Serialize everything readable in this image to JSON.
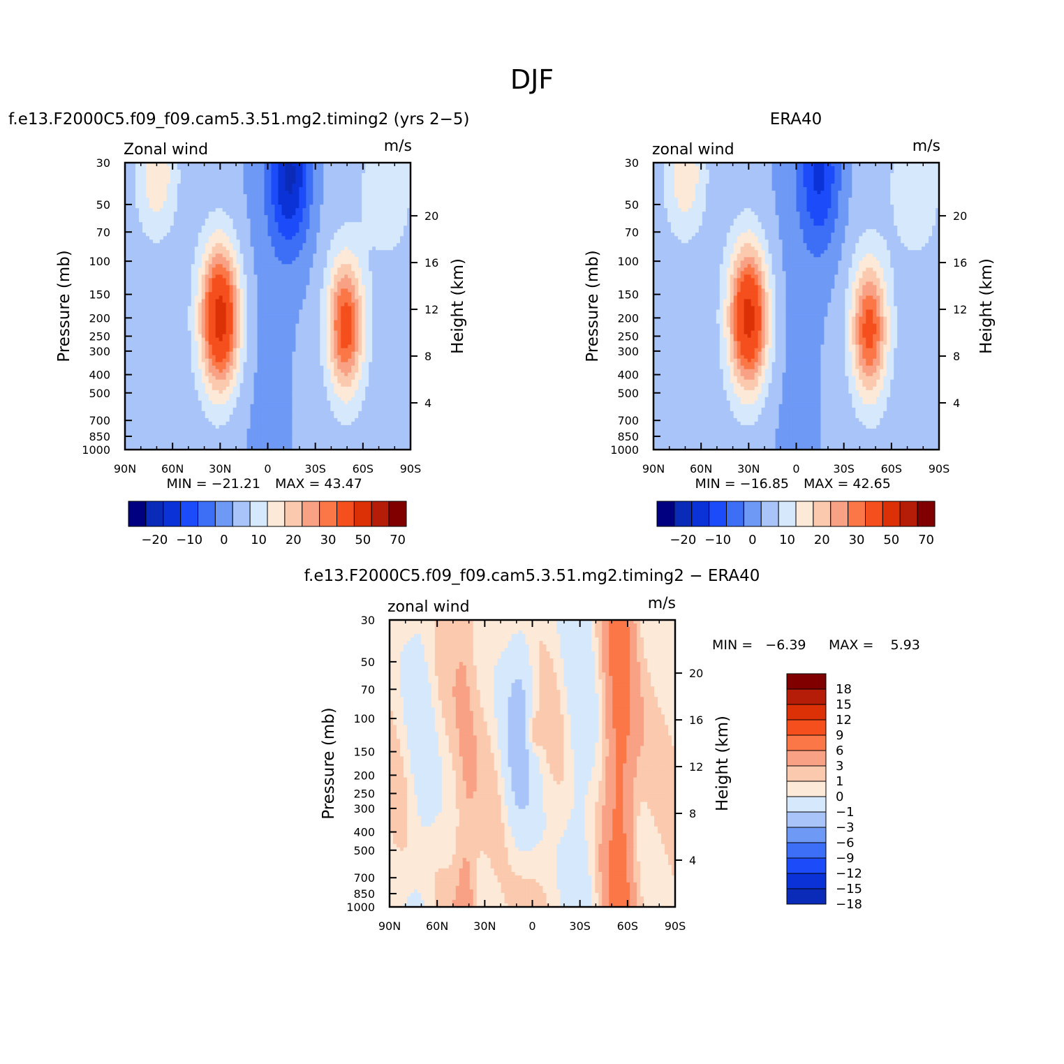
{
  "main_title": "DJF",
  "colors": {
    "main": [
      "#000080",
      "#0a2bb7",
      "#0a32d7",
      "#1c4cf9",
      "#3d6ff6",
      "#6e99f5",
      "#a9c4f9",
      "#d6e8fb",
      "#fde9d8",
      "#fbc9ae",
      "#f9a184",
      "#fb7747",
      "#f44f1c",
      "#dc3007",
      "#b61d08",
      "#800000"
    ],
    "diff": [
      "#000080",
      "#0a2bb7",
      "#0a32d7",
      "#1c4cf9",
      "#3d6ff6",
      "#6e99f5",
      "#a9c4f9",
      "#d6e8fb",
      "#fde9d8",
      "#fbc9ae",
      "#f9a184",
      "#fb7747",
      "#f44f1c",
      "#dc3007",
      "#b61d08",
      "#800000"
    ]
  },
  "chart_data": [
    {
      "type": "heatmap",
      "panel": "model",
      "title": "f.e13.F2000C5.f09_f09.cam5.3.51.mg2.timing2 (yrs 2−5)",
      "left_string": "Zonal wind",
      "right_string": "m/s",
      "ylabel": "Pressure (mb)",
      "ylabel_right": "Height (km)",
      "x_ticks": [
        "90N",
        "60N",
        "30N",
        "0",
        "30S",
        "60S",
        "90S"
      ],
      "y_ticks": [
        "30",
        "50",
        "70",
        "100",
        "150",
        "200",
        "250",
        "300",
        "400",
        "500",
        "700",
        "850",
        "1000"
      ],
      "y_ticks_right": [
        "20",
        "16",
        "12",
        "8",
        "4"
      ],
      "xlim": [
        90,
        -90
      ],
      "ylim": [
        1000,
        30
      ],
      "y_scale": "log",
      "min_text": "MIN = −21.21",
      "max_text": "MAX = 43.47",
      "min": -21.21,
      "max": 43.47,
      "colorbar_labels": [
        "−20",
        "−10",
        "0",
        "10",
        "20",
        "30",
        "50",
        "70"
      ],
      "jets": [
        {
          "lat": 30,
          "p": 200,
          "u": 43
        },
        {
          "lat": -49,
          "p": 220,
          "u": 32
        },
        {
          "lat": -14,
          "p": 35,
          "u": -21
        }
      ]
    },
    {
      "type": "heatmap",
      "panel": "obs",
      "title": "ERA40",
      "left_string": "zonal wind",
      "right_string": "m/s",
      "ylabel": "Pressure (mb)",
      "ylabel_right": "Height (km)",
      "x_ticks": [
        "90N",
        "60N",
        "30N",
        "0",
        "30S",
        "60S",
        "90S"
      ],
      "y_ticks": [
        "30",
        "50",
        "70",
        "100",
        "150",
        "200",
        "250",
        "300",
        "400",
        "500",
        "700",
        "850",
        "1000"
      ],
      "y_ticks_right": [
        "20",
        "16",
        "12",
        "8",
        "4"
      ],
      "xlim": [
        90,
        -90
      ],
      "ylim": [
        1000,
        30
      ],
      "y_scale": "log",
      "min_text": "MIN = −16.85",
      "max_text": "MAX = 42.65",
      "min": -16.85,
      "max": 42.65,
      "colorbar_labels": [
        "−20",
        "−10",
        "0",
        "10",
        "20",
        "30",
        "50",
        "70"
      ],
      "jets": [
        {
          "lat": 30,
          "p": 200,
          "u": 42
        },
        {
          "lat": -46,
          "p": 230,
          "u": 31
        },
        {
          "lat": -15,
          "p": 35,
          "u": -16
        }
      ]
    },
    {
      "type": "heatmap",
      "panel": "difference",
      "title": "f.e13.F2000C5.f09_f09.cam5.3.51.mg2.timing2 − ERA40",
      "left_string": "zonal wind",
      "right_string": "m/s",
      "ylabel": "Pressure (mb)",
      "ylabel_right": "Height (km)",
      "x_ticks": [
        "90N",
        "60N",
        "30N",
        "0",
        "30S",
        "60S",
        "90S"
      ],
      "y_ticks": [
        "30",
        "50",
        "70",
        "100",
        "150",
        "200",
        "250",
        "300",
        "400",
        "500",
        "700",
        "850",
        "1000"
      ],
      "y_ticks_right": [
        "20",
        "16",
        "12",
        "8",
        "4"
      ],
      "xlim": [
        90,
        -90
      ],
      "ylim": [
        1000,
        30
      ],
      "y_scale": "log",
      "min_text": "MIN =   −6.39",
      "max_text": "MAX =    5.93",
      "min": -6.39,
      "max": 5.93,
      "colorbar_labels": [
        "18",
        "15",
        "12",
        "9",
        "6",
        "3",
        "1",
        "0",
        "−1",
        "−3",
        "−6",
        "−9",
        "−12",
        "−15",
        "−18"
      ]
    }
  ]
}
